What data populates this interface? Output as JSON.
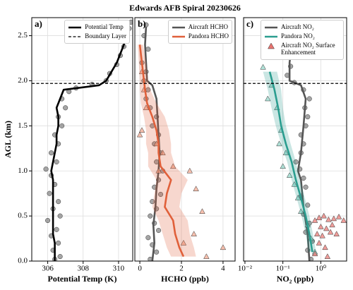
{
  "title": "Edwards AFB Spiral 20230626",
  "chart_data": [
    {
      "type": "line",
      "label": "a)",
      "xlabel": "Potential Temp (K)",
      "ylabel": "AGL (km)",
      "xlim": [
        305.1,
        310.8
      ],
      "xticks": [
        306,
        308,
        310
      ],
      "ylim": [
        0,
        2.7
      ],
      "yticks": [
        {
          "value": 0,
          "label": "0.0"
        },
        0.5,
        {
          "value": 1,
          "label": "1.0"
        },
        1.5,
        {
          "value": 2,
          "label": "2.0"
        },
        2.5
      ],
      "grid": true,
      "legend": "upper right",
      "hlines": [
        {
          "name": "Boundary Layer",
          "value": 1.97,
          "style": "dashed",
          "color": "#000000"
        }
      ],
      "series": [
        {
          "type": "scatter",
          "marker": "circle",
          "color": "#7f7f7f",
          "x": [
            306.4,
            306.7,
            306.3,
            306.6,
            306.2,
            306.5,
            306.0,
            306.7,
            306.3,
            306.6,
            306.1,
            306.4,
            306.2,
            305.9,
            306.5,
            306.2,
            306.6,
            306.4,
            306.8,
            306.6,
            307.0,
            306.8,
            307.2,
            307.6,
            308.5,
            309.3,
            309.5,
            309.9,
            310.1,
            310.3,
            310.4,
            310.6,
            310.7
          ],
          "y": [
            0.02,
            0.05,
            0.12,
            0.2,
            0.28,
            0.35,
            0.45,
            0.5,
            0.58,
            0.66,
            0.75,
            0.85,
            0.95,
            1.02,
            1.1,
            1.2,
            1.3,
            1.4,
            1.5,
            1.6,
            1.7,
            1.8,
            1.88,
            1.92,
            1.96,
            2.0,
            2.08,
            2.18,
            2.28,
            2.38,
            2.48,
            2.58,
            2.65
          ]
        },
        {
          "type": "line",
          "name": "Potential Temp",
          "color": "#000000",
          "x": [
            306.4,
            306.4,
            306.4,
            306.3,
            306.3,
            306.3,
            306.3,
            306.3,
            306.3,
            306.3,
            306.2,
            306.3,
            306.4,
            306.5,
            306.5,
            306.6,
            306.6,
            306.5,
            306.7,
            306.9,
            308.9,
            309.3,
            309.6,
            309.9,
            310.1,
            310.3,
            310.4,
            310.6
          ],
          "y": [
            0.0,
            0.1,
            0.2,
            0.3,
            0.4,
            0.5,
            0.6,
            0.7,
            0.8,
            0.9,
            1.0,
            1.1,
            1.2,
            1.3,
            1.4,
            1.5,
            1.6,
            1.7,
            1.8,
            1.9,
            1.95,
            2.0,
            2.1,
            2.2,
            2.3,
            2.4,
            2.5,
            2.6
          ]
        }
      ]
    },
    {
      "type": "line",
      "label": "b)",
      "xlabel": "HCHO (ppb)",
      "xlim": [
        -0.24,
        4.58
      ],
      "xticks": [
        0,
        2,
        4
      ],
      "grid": true,
      "legend": "upper right",
      "series": [
        {
          "type": "scatter",
          "marker": "circle",
          "color": "#7f7f7f",
          "x": [
            0.5,
            0.8,
            0.6,
            0.4,
            0.9,
            0.7,
            0.5,
            0.8,
            0.6,
            1.0,
            0.7,
            0.9,
            1.1,
            0.8,
            1.0,
            0.7,
            0.9,
            0.6,
            0.8,
            0.5,
            0.3,
            0.4,
            0.2,
            0.3,
            0.1,
            0.4,
            0.2,
            0.3
          ],
          "y": [
            0.02,
            0.1,
            0.18,
            0.26,
            0.34,
            0.42,
            0.5,
            0.58,
            0.66,
            0.74,
            0.82,
            0.9,
            1.0,
            1.1,
            1.2,
            1.3,
            1.4,
            1.5,
            1.6,
            1.7,
            1.8,
            1.9,
            2.0,
            2.1,
            2.2,
            2.35,
            2.5,
            2.62
          ]
        },
        {
          "type": "line",
          "name": "Aircraft HCHO",
          "color": "#555555",
          "x": [
            0.6,
            0.7,
            0.65,
            0.75,
            0.8,
            0.9,
            0.95,
            0.9,
            0.85,
            0.8,
            0.6,
            0.35,
            0.3,
            0.25,
            0.3
          ],
          "y": [
            0,
            0.2,
            0.4,
            0.6,
            0.8,
            1.0,
            1.2,
            1.4,
            1.6,
            1.8,
            1.95,
            2.0,
            2.2,
            2.4,
            2.6
          ]
        },
        {
          "type": "scatter",
          "marker": "triangle",
          "color": "#f4a58c",
          "x": [
            0.1,
            0.2,
            0.3,
            0.1,
            0.0,
            0.8,
            1.1,
            1.6,
            2.4,
            2.7,
            3.0,
            2.6,
            2.1,
            3.2,
            4.0,
            0.9
          ],
          "y": [
            2.1,
            1.9,
            1.7,
            1.45,
            1.4,
            1.3,
            1.2,
            1.05,
            1.0,
            0.8,
            0.55,
            0.3,
            0.2,
            0.05,
            0.15,
            1.0
          ]
        },
        {
          "type": "line",
          "name": "Pandora HCHO",
          "color": "#e0603a",
          "x": [
            2.1,
            1.9,
            1.7,
            1.6,
            1.2,
            1.3,
            1.5,
            1.0,
            0.9,
            0.9,
            0.8,
            0.6,
            0.35,
            0.25,
            0.2,
            0.1,
            0.0
          ],
          "lower": [
            1.5,
            1.3,
            1.1,
            0.9,
            0.6,
            0.7,
            0.8,
            0.4,
            0.4,
            0.3,
            0.3,
            0.2,
            0.05,
            0.0,
            0.0,
            -0.05,
            -0.1
          ],
          "upper": [
            2.7,
            2.6,
            2.4,
            2.3,
            1.9,
            2.0,
            2.3,
            1.7,
            1.5,
            1.5,
            1.4,
            1.2,
            0.8,
            0.5,
            0.4,
            0.3,
            0.15
          ],
          "y": [
            0.05,
            0.15,
            0.3,
            0.45,
            0.6,
            0.75,
            0.9,
            1.05,
            1.2,
            1.3,
            1.45,
            1.6,
            1.75,
            1.9,
            2.0,
            2.2,
            2.4
          ]
        }
      ]
    },
    {
      "type": "line",
      "label": "c)",
      "xlabel": "NO₂ (ppb)",
      "xscale": "log",
      "xlim": [
        0.0092,
        4.8
      ],
      "xticks": [
        {
          "value": 0.01,
          "label": "10⁻²"
        },
        {
          "value": 0.1,
          "label": "10⁻¹"
        },
        {
          "value": 1,
          "label": "10⁰"
        }
      ],
      "grid": true,
      "legend": "upper right",
      "series": [
        {
          "type": "scatter",
          "marker": "circle",
          "color": "#7f7f7f",
          "x": [
            0.55,
            0.45,
            0.6,
            0.4,
            0.5,
            0.35,
            0.45,
            0.3,
            0.4,
            0.35,
            0.28,
            0.22,
            0.3,
            0.35,
            0.3,
            0.4,
            0.45,
            0.38,
            0.5,
            0.35,
            0.2,
            0.13,
            0.16,
            0.14,
            0.18,
            0.2,
            0.22
          ],
          "y": [
            0.02,
            0.12,
            0.22,
            0.32,
            0.42,
            0.52,
            0.62,
            0.72,
            0.82,
            0.92,
            1.02,
            1.1,
            1.2,
            1.3,
            1.4,
            1.5,
            1.6,
            1.7,
            1.8,
            1.9,
            1.98,
            2.06,
            2.16,
            2.28,
            2.4,
            2.52,
            2.64
          ]
        },
        {
          "type": "line",
          "name": "Aircraft NO₂",
          "color": "#555555",
          "x": [
            0.5,
            0.45,
            0.35,
            0.3,
            0.25,
            0.3,
            0.35,
            0.4,
            0.3,
            0.15,
            0.15,
            0.17,
            0.2
          ],
          "y": [
            0,
            0.3,
            0.6,
            0.9,
            1.0,
            1.2,
            1.5,
            1.8,
            1.95,
            2.0,
            2.2,
            2.4,
            2.6
          ]
        },
        {
          "type": "scatter",
          "marker": "triangle",
          "color": "#8fd6c8",
          "x": [
            0.03,
            0.05,
            0.04,
            0.07,
            0.09,
            0.08,
            0.12,
            0.1,
            0.15,
            0.2,
            0.25,
            0.3,
            0.45,
            0.55,
            0.7
          ],
          "y": [
            2.15,
            1.95,
            1.8,
            1.7,
            1.45,
            1.3,
            1.2,
            1.05,
            0.95,
            0.85,
            0.7,
            0.55,
            0.4,
            0.25,
            0.1
          ]
        },
        {
          "type": "line",
          "name": "Pandora NO₂",
          "color": "#2a9d8f",
          "x": [
            0.045,
            0.06,
            0.075,
            0.09,
            0.12,
            0.17,
            0.22,
            0.3,
            0.4,
            0.5,
            0.6
          ],
          "lower": [
            0.03,
            0.04,
            0.05,
            0.065,
            0.09,
            0.13,
            0.17,
            0.23,
            0.31,
            0.4,
            0.48
          ],
          "upper": [
            0.07,
            0.09,
            0.1,
            0.12,
            0.16,
            0.22,
            0.28,
            0.38,
            0.5,
            0.62,
            0.75
          ],
          "y": [
            2.1,
            1.9,
            1.7,
            1.5,
            1.3,
            1.1,
            0.9,
            0.7,
            0.5,
            0.3,
            0.1
          ]
        },
        {
          "type": "scatter",
          "marker": "triangle",
          "name": "Aircraft NO₂ Surface Enhancement",
          "color": "#e8736f",
          "x": [
            0.7,
            0.9,
            1.2,
            1.6,
            2.2,
            3.0,
            4.0,
            1.0,
            1.4,
            2.0,
            0.8,
            1.1,
            1.8,
            2.6,
            0.9,
            1.3,
            0.7,
            1.5
          ],
          "y": [
            0.45,
            0.48,
            0.5,
            0.46,
            0.47,
            0.49,
            0.45,
            0.38,
            0.36,
            0.4,
            0.3,
            0.28,
            0.32,
            0.3,
            0.2,
            0.15,
            0.08,
            0.05
          ]
        }
      ]
    }
  ]
}
